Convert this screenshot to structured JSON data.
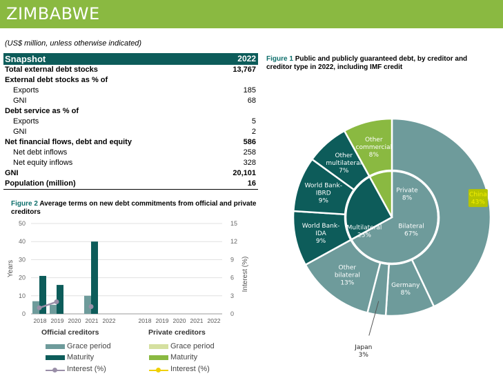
{
  "header": {
    "title": "ZIMBABWE",
    "subtitle": "(US$ million, unless otherwise indicated)"
  },
  "snapshot": {
    "title": "Snapshot",
    "year": "2022",
    "rows": [
      {
        "label": "Total external debt stocks",
        "value": "13,767",
        "bold": true,
        "indent": false
      },
      {
        "label": "External debt stocks as % of",
        "value": "",
        "bold": true,
        "indent": false
      },
      {
        "label": "Exports",
        "value": "185",
        "bold": false,
        "indent": true
      },
      {
        "label": "GNI",
        "value": "68",
        "bold": false,
        "indent": true
      },
      {
        "label": "Debt service as % of",
        "value": "",
        "bold": true,
        "indent": false
      },
      {
        "label": "Exports",
        "value": "5",
        "bold": false,
        "indent": true
      },
      {
        "label": "GNI",
        "value": "2",
        "bold": false,
        "indent": true
      },
      {
        "label": "Net financial flows, debt and equity",
        "value": "586",
        "bold": true,
        "indent": false
      },
      {
        "label": "Net debt inflows",
        "value": "258",
        "bold": false,
        "indent": true
      },
      {
        "label": "Net equity inflows",
        "value": "328",
        "bold": false,
        "indent": true
      },
      {
        "label": "GNI",
        "value": "20,101",
        "bold": true,
        "indent": false
      },
      {
        "label": "Population (million)",
        "value": "16",
        "bold": true,
        "indent": false
      }
    ]
  },
  "figure1": {
    "number": "Figure 1",
    "title": "Public and publicly guaranteed debt, by creditor and creditor type in 2022, including IMF credit"
  },
  "figure2": {
    "number": "Figure 2",
    "title": "Average terms on new debt commitments from official and private creditors"
  },
  "chart_data": [
    {
      "type": "pie",
      "title": "Public and publicly guaranteed debt, by creditor and creditor type in 2022, including IMF credit",
      "outer": [
        {
          "name": "China",
          "pct": 43,
          "label": "China\n43%",
          "color": "#6e9b9b",
          "highlight": true
        },
        {
          "name": "Germany",
          "pct": 8,
          "label": "Germany\n8%",
          "color": "#6e9b9b"
        },
        {
          "name": "Japan",
          "pct": 3,
          "label": "Japan\n3%",
          "color": "#6e9b9b",
          "outside": true
        },
        {
          "name": "Other bilateral",
          "pct": 13,
          "label": "Other\nbilateral\n13%",
          "color": "#6e9b9b"
        },
        {
          "name": "World Bank-IDA",
          "pct": 9,
          "label": "World Bank-\nIDA\n9%",
          "color": "#0d5c5a"
        },
        {
          "name": "World Bank-IBRD",
          "pct": 9,
          "label": "World Bank-\nIBRD\n9%",
          "color": "#0d5c5a"
        },
        {
          "name": "Other multilateral",
          "pct": 7,
          "label": "Other\nmultilateral\n7%",
          "color": "#0d5c5a"
        },
        {
          "name": "Other commercial",
          "pct": 8,
          "label": "Other\ncommercial\n8%",
          "color": "#8ab941"
        }
      ],
      "inner": [
        {
          "name": "Bilateral",
          "pct": 67,
          "label": "Bilateral\n67%",
          "color": "#6e9b9b"
        },
        {
          "name": "Multilateral",
          "pct": 25,
          "label": "Multilateral\n25%",
          "color": "#0d5c5a"
        },
        {
          "name": "Private",
          "pct": 8,
          "label": "Private\n8%",
          "color": "#8ab941"
        }
      ]
    },
    {
      "type": "bar",
      "title": "Average terms on new debt commitments from official and private creditors",
      "ylabel": "Years",
      "y2label": "Interest (%)",
      "ylim": [
        0,
        50
      ],
      "y2lim": [
        0,
        15
      ],
      "yticks": [
        0,
        10,
        20,
        30,
        40,
        50
      ],
      "y2ticks": [
        0,
        3,
        6,
        9,
        12,
        15
      ],
      "groups": [
        {
          "name": "Official creditors",
          "categories": [
            "2018",
            "2019",
            "2020",
            "2021",
            "2022"
          ],
          "grace": [
            7,
            5,
            0,
            10,
            0
          ],
          "maturity": [
            21,
            16,
            0,
            40,
            0
          ],
          "interest": [
            1.0,
            2.0,
            null,
            1.2,
            null
          ]
        },
        {
          "name": "Private creditors",
          "categories": [
            "2018",
            "2019",
            "2020",
            "2021",
            "2022"
          ],
          "grace": [
            0,
            0,
            0,
            0,
            0
          ],
          "maturity": [
            0,
            0,
            0,
            0,
            0
          ],
          "interest": [
            null,
            null,
            null,
            null,
            null
          ]
        }
      ],
      "legend": {
        "official": {
          "grace": "Grace period",
          "maturity": "Maturity",
          "interest": "Interest (%)"
        },
        "private": {
          "grace": "Grace period",
          "maturity": "Maturity",
          "interest": "Interest (%)"
        }
      },
      "colors": {
        "off_grace": "#6e9b9b",
        "off_maturity": "#0d5c5a",
        "off_interest": "#9a8fa8",
        "priv_grace": "#d5e0a0",
        "priv_maturity": "#8ab941",
        "priv_interest": "#f0d000"
      }
    }
  ]
}
